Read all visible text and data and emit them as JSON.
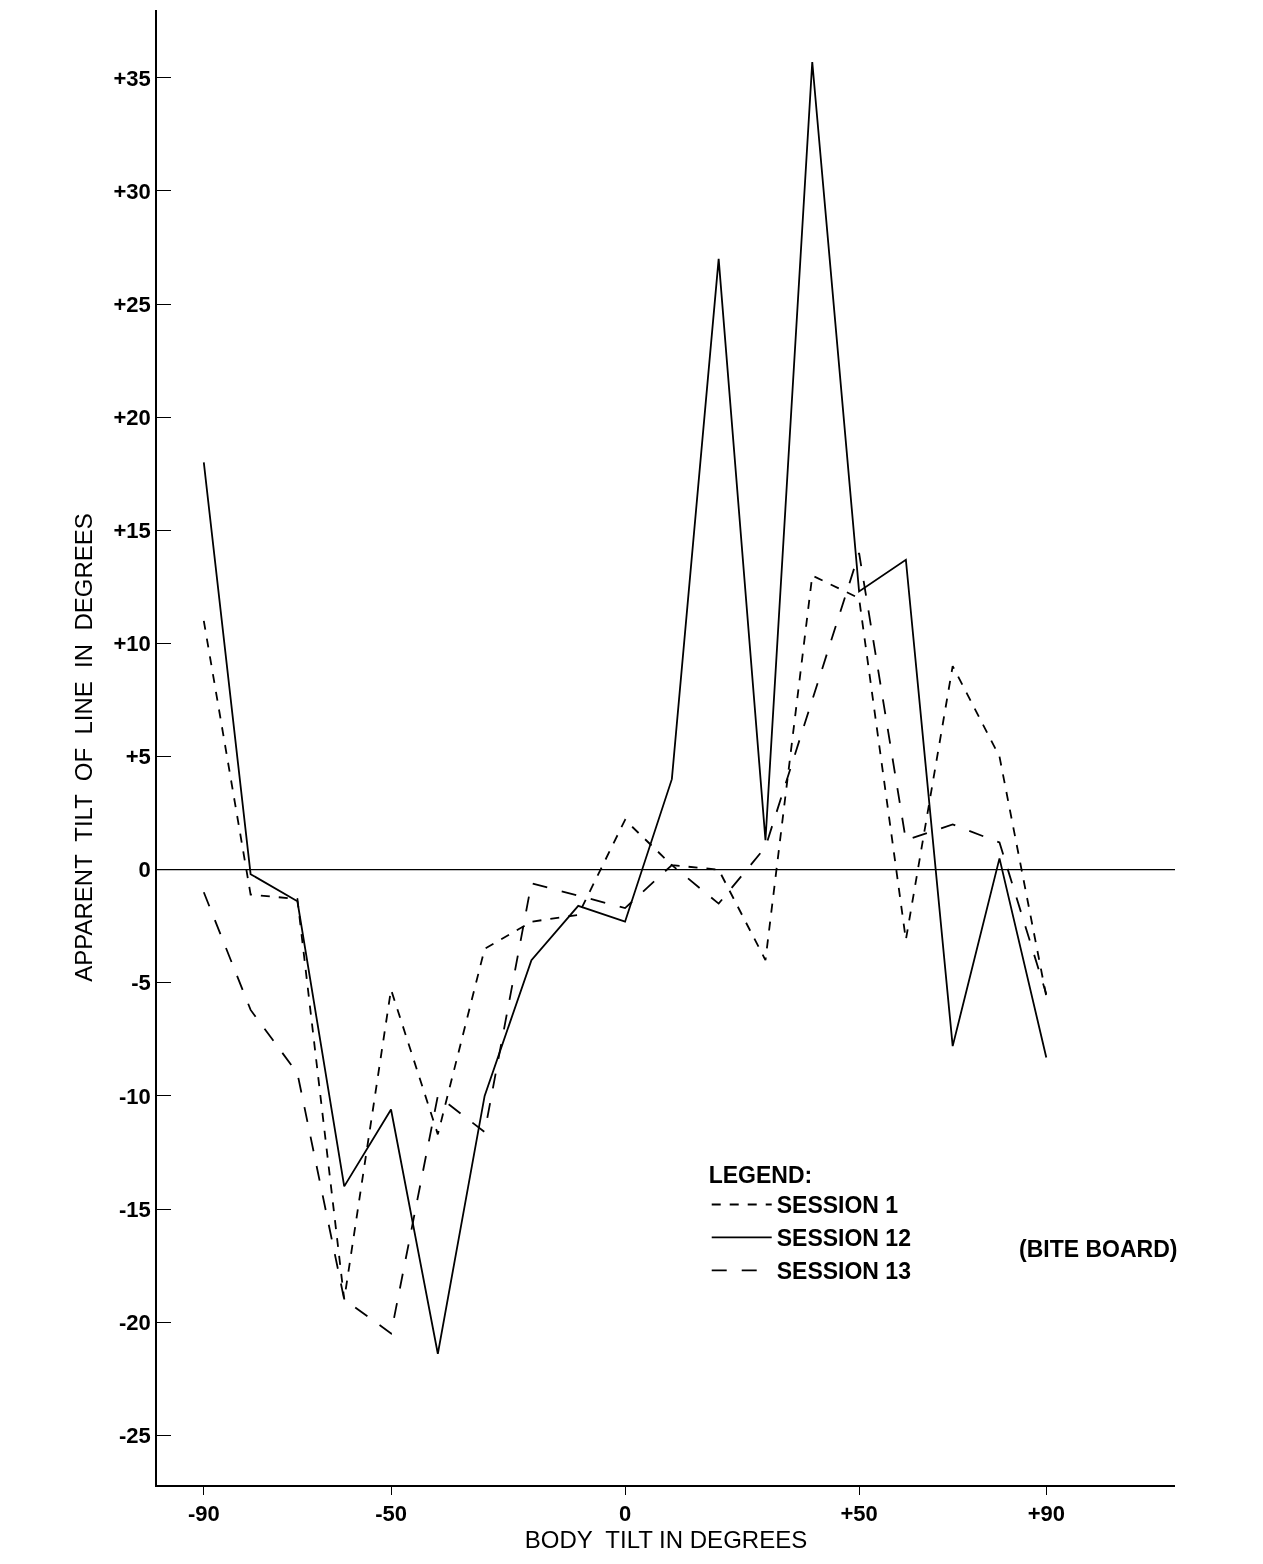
{
  "chart_data": {
    "type": "line",
    "xlabel": "BODY  TILT IN DEGREES",
    "ylabel": "APPARENT  TILT  OF  LINE  IN  DEGREES",
    "legend_title": "LEGEND:",
    "legend": "bottom right",
    "marker": "none",
    "xlim": [
      -100,
      117.5
    ],
    "ylim": [
      -27.2,
      38
    ],
    "xticks": [
      -90,
      -50,
      0,
      {
        "value": 50,
        "label": "+50"
      },
      {
        "value": 90,
        "label": "+90"
      }
    ],
    "yticks": [
      -25,
      -20,
      -15,
      -10,
      -5,
      0,
      {
        "value": 5,
        "label": "+5"
      },
      {
        "value": 10,
        "label": "+10"
      },
      {
        "value": 15,
        "label": "+15"
      },
      {
        "value": 20,
        "label": "+20"
      },
      {
        "value": 25,
        "label": "+25"
      },
      {
        "value": 30,
        "label": "+30"
      },
      {
        "value": 35,
        "label": "+35"
      }
    ],
    "ref_lines": [
      {
        "axis": "y",
        "value": 0,
        "color": "#000000"
      }
    ],
    "annotations": [
      "(BITE BOARD)"
    ],
    "series": [
      {
        "name": "SESSION 1",
        "color": "#000000",
        "line_style": "dotted",
        "x": [
          -90,
          -80,
          -70,
          -60,
          -50,
          -40,
          -30,
          -20,
          -10,
          0,
          10,
          20,
          30,
          40,
          50,
          60,
          70,
          80,
          90
        ],
        "values": [
          11,
          -1.1,
          -1.3,
          -19,
          -5.3,
          -11.7,
          -3.5,
          -2.3,
          -2,
          2.2,
          0.2,
          0,
          -4,
          13,
          12,
          -3.1,
          9,
          5,
          -5.6
        ]
      },
      {
        "name": "SESSION 12",
        "color": "#000000",
        "line_style": "solid",
        "x": [
          -90,
          -80,
          -70,
          -60,
          -50,
          -40,
          -30,
          -20,
          -10,
          0,
          10,
          20,
          30,
          40,
          50,
          60,
          70,
          80,
          90
        ],
        "values": [
          18,
          -0.2,
          -1.4,
          -14,
          -10.6,
          -21.4,
          -10,
          -4,
          -1.6,
          -2.3,
          4,
          27,
          1.3,
          35.7,
          12.3,
          13.7,
          -7.8,
          0.5,
          -8.3
        ]
      },
      {
        "name": "SESSION 13",
        "color": "#000000",
        "line_style": "dashed",
        "x": [
          -90,
          -80,
          -70,
          -60,
          -50,
          -40,
          -30,
          -20,
          0,
          10,
          20,
          30,
          50,
          60,
          70,
          80,
          90
        ],
        "values": [
          -1,
          -6.2,
          -9,
          -19,
          -20.5,
          -10,
          -11.6,
          -0.6,
          -1.7,
          0.2,
          -1.5,
          1,
          14,
          1.3,
          2,
          1.2,
          -5.5
        ]
      }
    ]
  }
}
